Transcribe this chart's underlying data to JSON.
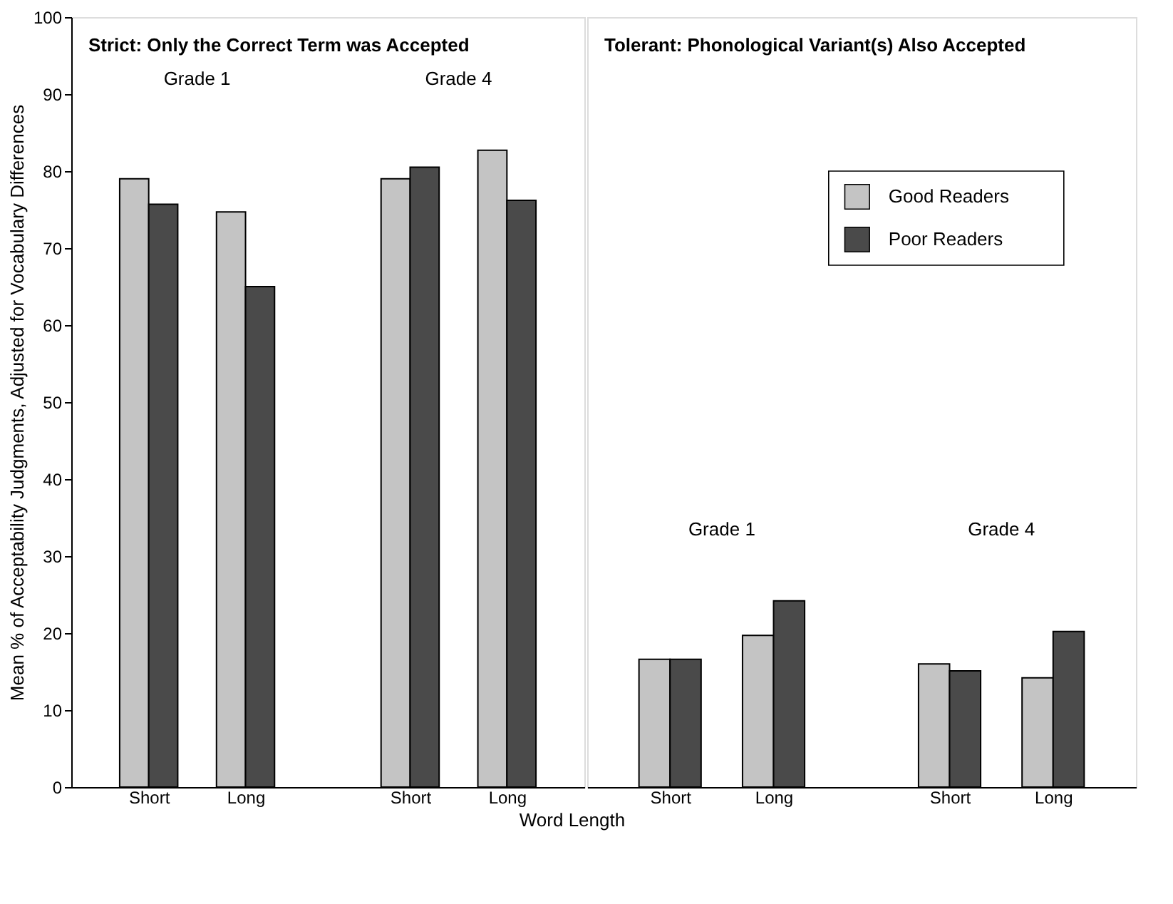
{
  "chart_data": [
    {
      "type": "bar",
      "title": "Strict: Only the Correct Term was Accepted",
      "xlabel": "Word Length",
      "ylabel": "Mean % of Acceptability Judgments, Adjusted for Vocabulary Differences",
      "categories": [
        "Short",
        "Long",
        "Short",
        "Long"
      ],
      "series": [
        {
          "color": "#c4c4c4",
          "values": [
            79,
            74.7,
            79,
            82.7
          ]
        },
        {
          "color": "#4a4a4a",
          "values": [
            75.7,
            65,
            80.5,
            76.2
          ]
        }
      ],
      "annotations": [
        "Grade 1",
        "Grade 4"
      ],
      "ylim": [
        0,
        100
      ],
      "yticks": [
        0,
        10,
        20,
        30,
        40,
        50,
        60,
        70,
        80,
        90,
        100
      ],
      "grid": false,
      "legend": false
    },
    {
      "type": "bar",
      "title": "Tolerant: Phonological Variant(s) Also Accepted",
      "categories": [
        "Short",
        "Long",
        "Short",
        "Long"
      ],
      "series": [
        {
          "name": "Good Readers",
          "color": "#c4c4c4",
          "values": [
            16.6,
            19.7,
            16,
            14.2
          ]
        },
        {
          "name": "Poor Readers",
          "color": "#4a4a4a",
          "values": [
            16.6,
            24.2,
            15.1,
            20.2
          ]
        }
      ],
      "annotations": [
        "Grade 1",
        "Grade 4"
      ],
      "ylim": [
        0,
        100
      ],
      "yticks": [
        0,
        10,
        20,
        30,
        40,
        50,
        60,
        70,
        80,
        90,
        100
      ],
      "grid": false,
      "legend": "top right",
      "tick_labels": "x"
    }
  ]
}
